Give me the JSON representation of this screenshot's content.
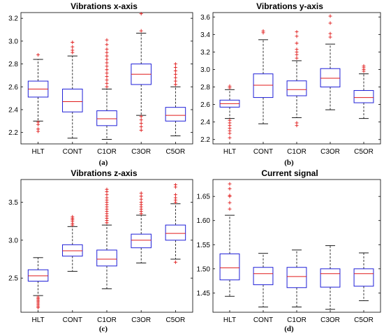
{
  "chart_data": [
    {
      "type": "box",
      "title": "Vibrations x-axis",
      "caption": "(a)",
      "categories": [
        "HLT",
        "CONT",
        "C1OR",
        "C3OR",
        "C5OR"
      ],
      "yticks": [
        2.2,
        2.4,
        2.6,
        2.8,
        3,
        3.2
      ],
      "ylim": [
        2.1,
        3.25
      ],
      "boxes": [
        {
          "min": 2.3,
          "q1": 2.51,
          "median": 2.58,
          "q3": 2.65,
          "max": 2.84,
          "outliers": [
            2.88,
            2.29,
            2.27,
            2.23,
            2.21
          ]
        },
        {
          "min": 2.15,
          "q1": 2.38,
          "median": 2.47,
          "q3": 2.58,
          "max": 2.87,
          "outliers": [
            2.9,
            2.92,
            2.95,
            2.99
          ]
        },
        {
          "min": 2.14,
          "q1": 2.26,
          "median": 2.32,
          "q3": 2.39,
          "max": 2.58,
          "outliers": [
            2.6,
            2.63,
            2.66,
            2.69,
            2.72,
            2.75,
            2.78,
            2.81,
            2.84,
            2.87,
            2.9,
            2.93,
            2.97,
            3.01
          ]
        },
        {
          "min": 2.35,
          "q1": 2.62,
          "median": 2.71,
          "q3": 2.8,
          "max": 3.07,
          "outliers": [
            3.09,
            3.24,
            2.34,
            2.31,
            2.28,
            2.25,
            2.22
          ]
        },
        {
          "min": 2.17,
          "q1": 2.3,
          "median": 2.35,
          "q3": 2.42,
          "max": 2.6,
          "outliers": [
            2.62,
            2.65,
            2.68,
            2.71,
            2.74,
            2.77,
            2.8
          ]
        }
      ]
    },
    {
      "type": "box",
      "title": "Vibrations y-axis",
      "caption": "(b)",
      "categories": [
        "HLT",
        "CONT",
        "C1OR",
        "C3OR",
        "C5OR"
      ],
      "yticks": [
        2.2,
        2.4,
        2.6,
        2.8,
        3,
        3.2,
        3.4,
        3.6
      ],
      "ylim": [
        2.15,
        3.65
      ],
      "boxes": [
        {
          "min": 2.44,
          "q1": 2.57,
          "median": 2.61,
          "q3": 2.65,
          "max": 2.77,
          "outliers": [
            2.79,
            2.81,
            2.42,
            2.39,
            2.36,
            2.33,
            2.3,
            2.27,
            2.22
          ]
        },
        {
          "min": 2.38,
          "q1": 2.68,
          "median": 2.82,
          "q3": 2.95,
          "max": 3.34,
          "outliers": [
            3.42,
            3.44
          ]
        },
        {
          "min": 2.45,
          "q1": 2.7,
          "median": 2.77,
          "q3": 2.87,
          "max": 3.1,
          "outliers": [
            3.13,
            3.17,
            3.2,
            3.23,
            3.3,
            3.38,
            3.43,
            2.36,
            2.39
          ]
        },
        {
          "min": 2.54,
          "q1": 2.8,
          "median": 2.9,
          "q3": 3.01,
          "max": 3.29,
          "outliers": [
            3.37,
            3.41,
            3.53,
            3.61
          ]
        },
        {
          "min": 2.44,
          "q1": 2.62,
          "median": 2.68,
          "q3": 2.76,
          "max": 2.95,
          "outliers": [
            2.98,
            3.0,
            3.02,
            3.04
          ]
        }
      ]
    },
    {
      "type": "box",
      "title": "Vibrations z-axis",
      "caption": "(c)",
      "categories": [
        "HLT",
        "CONT",
        "C1OR",
        "C3OR",
        "C5OR"
      ],
      "yticks": [
        2.5,
        3,
        3.5
      ],
      "ylim": [
        2.05,
        3.8
      ],
      "boxes": [
        {
          "min": 2.27,
          "q1": 2.46,
          "median": 2.53,
          "q3": 2.61,
          "max": 2.77,
          "outliers": [
            2.25,
            2.23,
            2.21,
            2.19,
            2.17,
            2.15,
            2.13,
            2.11
          ]
        },
        {
          "min": 2.59,
          "q1": 2.79,
          "median": 2.86,
          "q3": 2.94,
          "max": 3.18,
          "outliers": [
            3.2,
            3.22,
            3.25,
            3.27,
            3.29,
            3.31
          ]
        },
        {
          "min": 2.36,
          "q1": 2.66,
          "median": 2.75,
          "q3": 2.87,
          "max": 3.2,
          "outliers": [
            3.23,
            3.26,
            3.29,
            3.32,
            3.35,
            3.38,
            3.41,
            3.44,
            3.47,
            3.5,
            3.53,
            3.56,
            3.6,
            3.64,
            3.67
          ]
        },
        {
          "min": 2.7,
          "q1": 2.9,
          "median": 3.0,
          "q3": 3.08,
          "max": 3.33,
          "outliers": [
            3.35,
            3.38,
            3.41,
            3.44,
            3.47,
            3.5,
            3.54,
            3.58,
            3.62
          ]
        },
        {
          "min": 2.75,
          "q1": 3.0,
          "median": 3.09,
          "q3": 3.2,
          "max": 3.48,
          "outliers": [
            3.5,
            3.53,
            3.56,
            3.6,
            3.7,
            3.73,
            2.71
          ]
        }
      ]
    },
    {
      "type": "box",
      "title": "Current signal",
      "caption": "(d)",
      "categories": [
        "HLT",
        "CONT",
        "C1OR",
        "C3OR",
        "C5OR"
      ],
      "yticks": [
        1.45,
        1.5,
        1.55,
        1.6,
        1.65
      ],
      "ylim": [
        1.41,
        1.685
      ],
      "boxes": [
        {
          "min": 1.443,
          "q1": 1.477,
          "median": 1.502,
          "q3": 1.531,
          "max": 1.611,
          "outliers": [
            1.624,
            1.637,
            1.65,
            1.652,
            1.666,
            1.676
          ]
        },
        {
          "min": 1.421,
          "q1": 1.467,
          "median": 1.49,
          "q3": 1.503,
          "max": 1.532,
          "outliers": []
        },
        {
          "min": 1.421,
          "q1": 1.461,
          "median": 1.484,
          "q3": 1.503,
          "max": 1.539,
          "outliers": []
        },
        {
          "min": 1.416,
          "q1": 1.462,
          "median": 1.49,
          "q3": 1.5,
          "max": 1.548,
          "outliers": []
        },
        {
          "min": 1.434,
          "q1": 1.464,
          "median": 1.49,
          "q3": 1.5,
          "max": 1.533,
          "outliers": []
        }
      ]
    }
  ],
  "colors": {
    "box": "#1f1fd8",
    "median": "#e01b1b",
    "outlier": "#e01b1b",
    "whisker": "#000000"
  }
}
